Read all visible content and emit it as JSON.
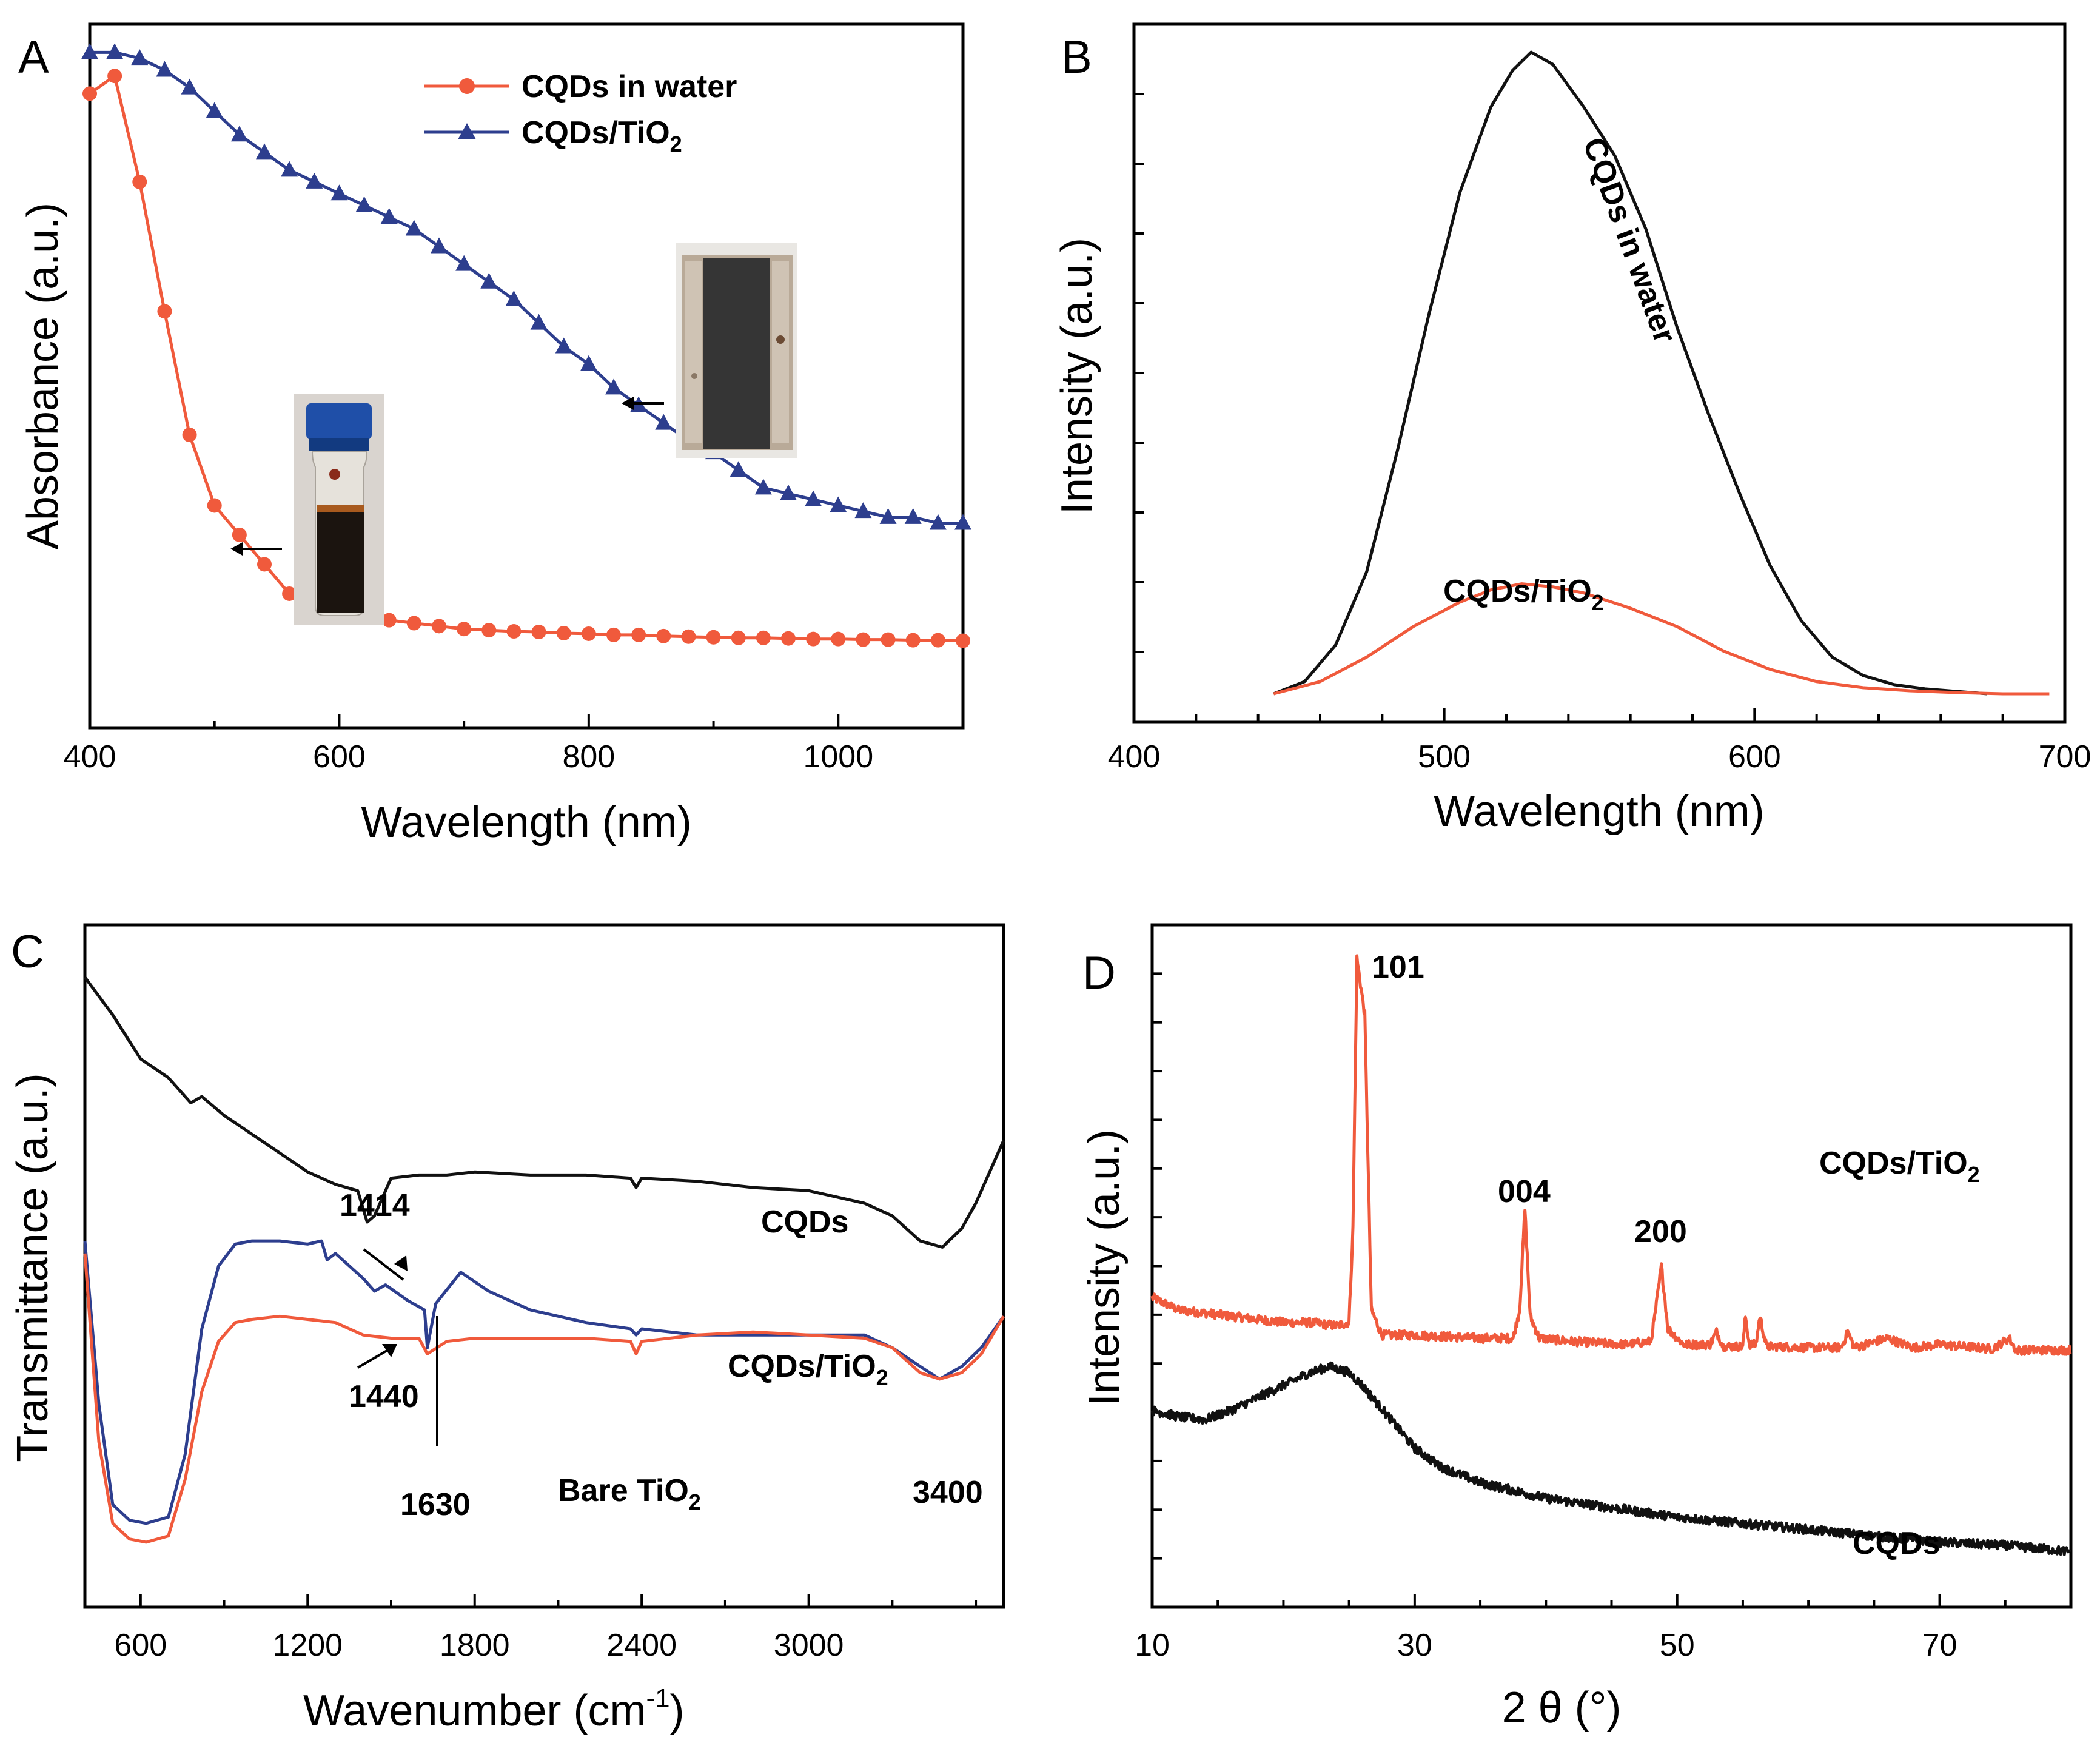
{
  "chart_data": [
    {
      "panel": "A",
      "type": "line",
      "xlabel": "Wavelength (nm)",
      "ylabel": "Absorbance (a.u.)",
      "xlim": [
        400,
        1100
      ],
      "ylim": [
        0,
        1.1
      ],
      "xticks": [
        "400",
        "600",
        "800",
        "1000"
      ],
      "series": [
        {
          "name": "CQDs in water",
          "color": "#f05a3c",
          "marker": "circle",
          "x": [
            400,
            420,
            440,
            460,
            480,
            500,
            520,
            540,
            560,
            580,
            600,
            620,
            640,
            660,
            680,
            700,
            720,
            740,
            760,
            780,
            800,
            820,
            840,
            860,
            880,
            900,
            920,
            940,
            960,
            980,
            1000,
            1020,
            1040,
            1060,
            1080,
            1100
          ],
          "y": [
            1.03,
            1.06,
            0.88,
            0.66,
            0.45,
            0.33,
            0.28,
            0.23,
            0.18,
            0.16,
            0.15,
            0.14,
            0.135,
            0.13,
            0.125,
            0.12,
            0.118,
            0.116,
            0.115,
            0.113,
            0.112,
            0.11,
            0.11,
            0.108,
            0.107,
            0.106,
            0.105,
            0.105,
            0.104,
            0.103,
            0.103,
            0.102,
            0.102,
            0.101,
            0.101,
            0.1
          ]
        },
        {
          "name": "CQDs/TiO2",
          "color": "#2d3e8e",
          "marker": "triangle",
          "x": [
            400,
            420,
            440,
            460,
            480,
            500,
            520,
            540,
            560,
            580,
            600,
            620,
            640,
            660,
            680,
            700,
            720,
            740,
            760,
            780,
            800,
            820,
            840,
            860,
            880,
            900,
            920,
            940,
            960,
            980,
            1000,
            1020,
            1040,
            1060,
            1080,
            1100
          ],
          "y": [
            1.1,
            1.1,
            1.09,
            1.07,
            1.04,
            1.0,
            0.96,
            0.93,
            0.9,
            0.88,
            0.86,
            0.84,
            0.82,
            0.8,
            0.77,
            0.74,
            0.71,
            0.68,
            0.64,
            0.6,
            0.57,
            0.53,
            0.5,
            0.47,
            0.44,
            0.42,
            0.39,
            0.36,
            0.35,
            0.34,
            0.33,
            0.32,
            0.31,
            0.31,
            0.3,
            0.3
          ]
        }
      ],
      "insets": [
        "vial photo of CQDs in water",
        "photo of CQDs/TiO2 film"
      ]
    },
    {
      "panel": "B",
      "type": "line",
      "xlabel": "Wavelength (nm)",
      "ylabel": "Intensity (a.u.)",
      "xlim": [
        400,
        700
      ],
      "ylim": [
        0,
        1.05
      ],
      "xticks": [
        "400",
        "500",
        "600",
        "700"
      ],
      "series": [
        {
          "name": "CQDs in water",
          "color": "#111111",
          "x": [
            445,
            455,
            465,
            475,
            485,
            495,
            505,
            515,
            522,
            528,
            535,
            545,
            555,
            565,
            575,
            585,
            595,
            605,
            615,
            625,
            635,
            645,
            655,
            665,
            675
          ],
          "y": [
            0.0,
            0.02,
            0.08,
            0.2,
            0.4,
            0.62,
            0.82,
            0.96,
            1.02,
            1.05,
            1.03,
            0.96,
            0.88,
            0.76,
            0.6,
            0.46,
            0.33,
            0.21,
            0.12,
            0.06,
            0.03,
            0.015,
            0.008,
            0.004,
            0.0
          ]
        },
        {
          "name": "CQDs/TiO2",
          "color": "#f05a3c",
          "x": [
            445,
            460,
            475,
            490,
            505,
            515,
            525,
            535,
            545,
            560,
            575,
            590,
            605,
            620,
            635,
            650,
            665,
            680,
            695
          ],
          "y": [
            0.0,
            0.02,
            0.06,
            0.11,
            0.15,
            0.17,
            0.18,
            0.175,
            0.165,
            0.14,
            0.11,
            0.07,
            0.04,
            0.02,
            0.01,
            0.005,
            0.002,
            0.0,
            0.0
          ]
        }
      ],
      "annotations": [
        "CQDs in water",
        "CQDs/TiO",
        "2"
      ]
    },
    {
      "panel": "C",
      "type": "line",
      "xlabel": "Wavenumber (cm",
      "xlabel_sup": "-1",
      "xlabel_tail": ")",
      "ylabel": "Transmittance (a.u.)",
      "xlim": [
        400,
        3700
      ],
      "ylim": [
        0,
        1.0
      ],
      "xticks": [
        "600",
        "1200",
        "1800",
        "2400",
        "3000"
      ],
      "series": [
        {
          "name": "CQDs",
          "color": "#111111",
          "x": [
            400,
            500,
            600,
            700,
            780,
            820,
            900,
            1000,
            1100,
            1200,
            1300,
            1380,
            1414,
            1440,
            1500,
            1600,
            1700,
            1800,
            2000,
            2200,
            2360,
            2380,
            2400,
            2600,
            2800,
            3000,
            3200,
            3300,
            3400,
            3480,
            3550,
            3600,
            3700
          ],
          "y": [
            0.96,
            0.9,
            0.83,
            0.8,
            0.76,
            0.77,
            0.74,
            0.71,
            0.68,
            0.65,
            0.63,
            0.62,
            0.57,
            0.58,
            0.64,
            0.645,
            0.645,
            0.65,
            0.645,
            0.645,
            0.64,
            0.625,
            0.64,
            0.635,
            0.625,
            0.62,
            0.6,
            0.58,
            0.54,
            0.53,
            0.56,
            0.6,
            0.7
          ]
        },
        {
          "name": "CQDs/TiO2",
          "color": "#2d3e8e",
          "x": [
            400,
            450,
            500,
            560,
            620,
            700,
            760,
            820,
            880,
            940,
            1000,
            1100,
            1200,
            1250,
            1270,
            1300,
            1400,
            1440,
            1480,
            1560,
            1620,
            1630,
            1660,
            1750,
            1850,
            2000,
            2200,
            2360,
            2380,
            2400,
            2600,
            2800,
            3000,
            3200,
            3300,
            3400,
            3470,
            3550,
            3620,
            3700
          ],
          "y": [
            0.54,
            0.28,
            0.12,
            0.095,
            0.09,
            0.1,
            0.2,
            0.4,
            0.5,
            0.535,
            0.54,
            0.54,
            0.535,
            0.54,
            0.51,
            0.52,
            0.48,
            0.46,
            0.47,
            0.445,
            0.43,
            0.37,
            0.44,
            0.49,
            0.46,
            0.43,
            0.41,
            0.4,
            0.39,
            0.4,
            0.39,
            0.39,
            0.39,
            0.39,
            0.37,
            0.34,
            0.32,
            0.34,
            0.37,
            0.42
          ]
        },
        {
          "name": "Bare TiO2",
          "color": "#f05a3c",
          "x": [
            400,
            450,
            500,
            560,
            620,
            700,
            760,
            820,
            880,
            940,
            1000,
            1100,
            1200,
            1300,
            1350,
            1400,
            1500,
            1600,
            1630,
            1700,
            1800,
            2000,
            2200,
            2360,
            2380,
            2400,
            2600,
            2800,
            3000,
            3200,
            3300,
            3400,
            3470,
            3550,
            3620,
            3700
          ],
          "y": [
            0.52,
            0.22,
            0.09,
            0.065,
            0.06,
            0.07,
            0.16,
            0.3,
            0.38,
            0.41,
            0.415,
            0.42,
            0.415,
            0.41,
            0.4,
            0.39,
            0.385,
            0.385,
            0.36,
            0.38,
            0.385,
            0.385,
            0.385,
            0.38,
            0.36,
            0.38,
            0.39,
            0.395,
            0.39,
            0.385,
            0.37,
            0.33,
            0.32,
            0.33,
            0.36,
            0.42
          ]
        }
      ],
      "annotations": [
        "1414",
        "1440",
        "1630",
        "3400",
        "CQDs",
        "CQDs/TiO",
        "2",
        "Bare TiO",
        "2"
      ]
    },
    {
      "panel": "D",
      "type": "line",
      "xlabel": "2 θ (°)",
      "ylabel": "Intensity (a.u.)",
      "xlim": [
        10,
        80
      ],
      "ylim": [
        0,
        1.0
      ],
      "xticks": [
        "10",
        "30",
        "50",
        "70"
      ],
      "series": [
        {
          "name": "CQDs/TiO2",
          "color": "#f05a3c",
          "x": [
            10,
            11,
            12,
            14,
            16,
            18,
            20,
            22,
            24,
            25,
            25.3,
            25.6,
            26.2,
            26.7,
            27.5,
            30,
            35,
            37.5,
            38,
            38.4,
            38.8,
            39.5,
            42,
            46,
            48,
            48.3,
            48.8,
            49.3,
            50.5,
            52.5,
            53,
            53.5,
            55,
            55.2,
            55.5,
            56,
            56.3,
            56.8,
            60,
            62.5,
            63,
            63.5,
            66,
            68,
            70,
            74,
            75.3,
            75.8,
            80
          ],
          "y": [
            0.45,
            0.44,
            0.43,
            0.425,
            0.42,
            0.415,
            0.41,
            0.41,
            0.405,
            0.41,
            0.56,
            0.99,
            0.9,
            0.43,
            0.39,
            0.39,
            0.385,
            0.385,
            0.43,
            0.59,
            0.42,
            0.385,
            0.38,
            0.375,
            0.38,
            0.42,
            0.5,
            0.4,
            0.375,
            0.375,
            0.395,
            0.372,
            0.372,
            0.42,
            0.375,
            0.375,
            0.42,
            0.372,
            0.37,
            0.37,
            0.395,
            0.37,
            0.385,
            0.37,
            0.375,
            0.368,
            0.385,
            0.366,
            0.366
          ]
        },
        {
          "name": "CQDs",
          "color": "#111111",
          "x": [
            10,
            12,
            14,
            16,
            18,
            20,
            22,
            23.5,
            25,
            26,
            28,
            30,
            32,
            35,
            40,
            45,
            50,
            55,
            60,
            65,
            70,
            75,
            80
          ],
          "y": [
            0.27,
            0.26,
            0.255,
            0.27,
            0.29,
            0.31,
            0.33,
            0.34,
            0.33,
            0.31,
            0.26,
            0.21,
            0.18,
            0.155,
            0.13,
            0.115,
            0.1,
            0.09,
            0.08,
            0.07,
            0.06,
            0.055,
            0.045
          ]
        }
      ],
      "annotations": [
        "101",
        "004",
        "200",
        "CQDs/TiO",
        "2",
        "CQDs"
      ]
    }
  ],
  "panels": {
    "A": {
      "letter": "A",
      "legend": [
        "CQDs in water",
        "CQDs/TiO",
        "2"
      ]
    },
    "B": {
      "letter": "B"
    },
    "C": {
      "letter": "C"
    },
    "D": {
      "letter": "D"
    }
  },
  "colors": {
    "red": "#f05a3c",
    "blue": "#2d3e8e",
    "black": "#111111"
  }
}
